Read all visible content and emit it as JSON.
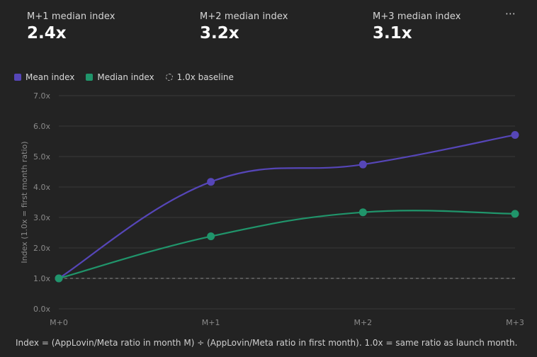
{
  "stats": [
    {
      "label": "M+1 median index",
      "value": "2.4x"
    },
    {
      "label": "M+2 median index",
      "value": "3.2x"
    },
    {
      "label": "M+3 median index",
      "value": "3.1x"
    }
  ],
  "menu_icon": "⋯",
  "legend": [
    {
      "label": "Mean index",
      "color": "#5646b8"
    },
    {
      "label": "Median index",
      "color": "#20956b"
    },
    {
      "label": "1.0x baseline",
      "color": "#b8b8b8"
    }
  ],
  "chart_data": {
    "type": "line",
    "x": [
      "M+0",
      "M+1",
      "M+2",
      "M+3"
    ],
    "series": [
      {
        "name": "Mean index",
        "color": "#5646b8",
        "values": [
          1.0,
          4.17,
          4.74,
          5.71
        ]
      },
      {
        "name": "Median index",
        "color": "#20956b",
        "values": [
          1.0,
          2.38,
          3.17,
          3.12
        ]
      }
    ],
    "baseline": {
      "name": "1.0x baseline",
      "value": 1.0
    },
    "ylabel": "Index (1.0x = first month ratio)",
    "yticks": [
      "0.0x",
      "1.0x",
      "2.0x",
      "3.0x",
      "4.0x",
      "5.0x",
      "6.0x",
      "7.0x"
    ],
    "ylim": [
      0,
      7
    ],
    "grid": true
  },
  "footnote": "Index = (AppLovin/Meta ratio in month M) ÷ (AppLovin/Meta ratio in first month). 1.0x = same ratio as launch month."
}
